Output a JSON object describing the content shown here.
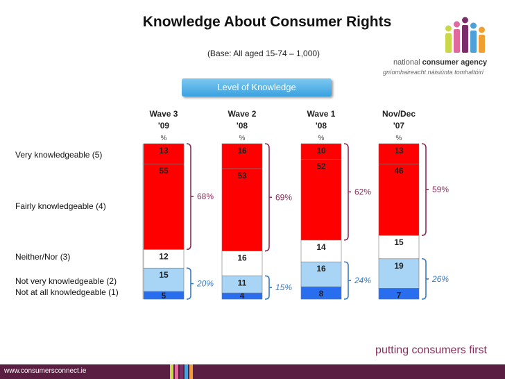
{
  "chart_data": {
    "type": "bar",
    "stacked": true,
    "title": "Knowledge About Consumer Rights",
    "subtitle": "(Base: All aged 15-74 – 1,000)",
    "legend_title": "Level of Knowledge",
    "unit_symbol": "%",
    "categories": [
      "Wave 3 '09",
      "Wave 2 '08",
      "Wave 1 '08",
      "Nov/Dec '07"
    ],
    "category_lines": [
      [
        "Wave 3",
        "'09"
      ],
      [
        "Wave 2",
        "'08"
      ],
      [
        "Wave 1",
        "'08"
      ],
      [
        "Nov/Dec",
        "'07"
      ]
    ],
    "series": [
      {
        "name": "Very knowledgeable (5)",
        "color": "#ff0000",
        "values": [
          13,
          16,
          10,
          13
        ]
      },
      {
        "name": "Fairly knowledgeable (4)",
        "color": "#ff0000",
        "values": [
          55,
          53,
          52,
          46
        ]
      },
      {
        "name": "Neither/Nor (3)",
        "color": "#ffffff",
        "values": [
          12,
          16,
          14,
          15
        ]
      },
      {
        "name": "Not very knowledgeable (2)",
        "color": "#a8d4f5",
        "values": [
          15,
          11,
          16,
          19
        ]
      },
      {
        "name": "Not at all knowledgeable (1)",
        "color": "#2a6ef0",
        "values": [
          5,
          4,
          8,
          7
        ]
      }
    ],
    "knowledgeable_totals": [
      "68%",
      "69%",
      "62%",
      "59%"
    ],
    "not_knowledgeable_totals": [
      "20%",
      "15%",
      "24%",
      "26%"
    ]
  },
  "branding": {
    "agency_line1a": "national ",
    "agency_line1b": "consumer agency",
    "agency_line2": "gníomhaireacht náisiúnta tomhaltóirí",
    "website": "www.consumersconnect.ie",
    "tagline": "putting consumers first"
  },
  "colors": {
    "accent_bracket": "#8a2e5c",
    "blue_bracket": "#3a7ac0",
    "footer": "#5a1e42"
  }
}
